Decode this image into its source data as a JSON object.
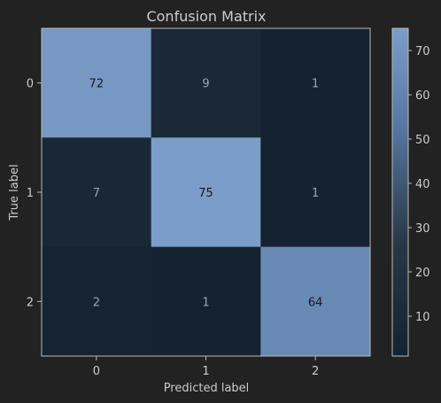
{
  "chart_data": {
    "type": "heatmap",
    "title": "Confusion Matrix",
    "xlabel": "Predicted label",
    "ylabel": "True label",
    "x_categories": [
      "0",
      "1",
      "2"
    ],
    "y_categories": [
      "0",
      "1",
      "2"
    ],
    "matrix": [
      [
        72,
        9,
        1
      ],
      [
        7,
        75,
        1
      ],
      [
        2,
        1,
        64
      ]
    ],
    "colorbar": {
      "ticks": [
        "10",
        "20",
        "30",
        "40",
        "50",
        "60",
        "70"
      ],
      "tick_values": [
        10,
        20,
        30,
        40,
        50,
        60,
        70
      ],
      "range": [
        1,
        75
      ]
    },
    "colors": {
      "background": "#222222",
      "low": "#152230",
      "high": "#7b9dc9",
      "text_light": "#9aa6b4",
      "text_dark": "#1a1a1a",
      "axis": "#cccccc",
      "title": "#cccccc"
    }
  }
}
